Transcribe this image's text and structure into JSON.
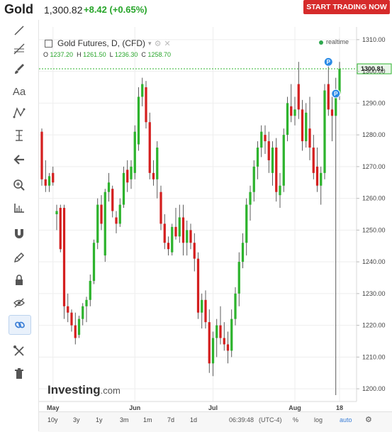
{
  "header": {
    "symbol": "Gold",
    "last": "1,300.82",
    "change": "+8.42 (+0.65%)",
    "cta": "START TRADING NOW"
  },
  "sidebar_tools": [
    "line-tool-icon",
    "fib-tool-icon",
    "brush-icon",
    "text-icon",
    "pattern-icon",
    "measure-icon",
    "back-arrow-icon",
    "zoom-icon",
    "ruler-icon",
    "magnet-icon",
    "pencil-icon",
    "lock-icon",
    "eye-hidden-icon",
    "link-icon",
    "tools-icon",
    "trash-icon"
  ],
  "legend": {
    "title": "Gold Futures, D, (CFD)",
    "ohlc": {
      "o_label": "O",
      "o": "1237.20",
      "h_label": "H",
      "h": "1261.50",
      "l_label": "L",
      "l": "1236.30",
      "c_label": "C",
      "c": "1258.70"
    },
    "realtime": "realtime"
  },
  "brand": {
    "name": "Investing",
    "suffix": ".com"
  },
  "bottom": {
    "ranges": [
      "10y",
      "3y",
      "1y",
      "3m",
      "1m",
      "7d",
      "1d"
    ],
    "time": "06:39:48",
    "tz": "(UTC-4)",
    "pct": "%",
    "log": "log",
    "auto": "auto"
  },
  "chart_data": {
    "type": "candlestick",
    "y_ticks": [
      1200,
      1210,
      1220,
      1230,
      1240,
      1250,
      1260,
      1270,
      1280,
      1290,
      1300,
      1310
    ],
    "ylim": [
      1196,
      1314
    ],
    "x_ticks": [
      {
        "label": "May",
        "index": 3
      },
      {
        "label": "Jun",
        "index": 25
      },
      {
        "label": "Jul",
        "index": 46
      },
      {
        "label": "Aug",
        "index": 68
      },
      {
        "label": "18",
        "index": 80
      }
    ],
    "current_price": "1300.81",
    "current_value": 1300.81,
    "colors": {
      "up": "#2db32d",
      "down": "#d41f1f"
    },
    "markers": [
      {
        "label": "P",
        "index": 77,
        "value": 1303
      },
      {
        "label": "P",
        "index": 79,
        "value": 1293
      }
    ],
    "candles": [
      {
        "o": 1281,
        "h": 1282,
        "l": 1264,
        "c": 1266
      },
      {
        "o": 1266,
        "h": 1272,
        "l": 1262,
        "c": 1264
      },
      {
        "o": 1264,
        "h": 1268,
        "l": 1262,
        "c": 1267
      },
      {
        "o": 1268,
        "h": 1270,
        "l": 1264,
        "c": 1265
      },
      {
        "o": 1255,
        "h": 1258,
        "l": 1250,
        "c": 1256
      },
      {
        "o": 1257,
        "h": 1258,
        "l": 1243,
        "c": 1244
      },
      {
        "o": 1257,
        "h": 1258,
        "l": 1222,
        "c": 1226
      },
      {
        "o": 1226,
        "h": 1230,
        "l": 1221,
        "c": 1224
      },
      {
        "o": 1224,
        "h": 1225,
        "l": 1218,
        "c": 1220
      },
      {
        "o": 1220,
        "h": 1224,
        "l": 1214,
        "c": 1216
      },
      {
        "o": 1217,
        "h": 1223,
        "l": 1216,
        "c": 1222
      },
      {
        "o": 1222,
        "h": 1227,
        "l": 1220,
        "c": 1226
      },
      {
        "o": 1226,
        "h": 1229,
        "l": 1221,
        "c": 1228
      },
      {
        "o": 1228,
        "h": 1236,
        "l": 1226,
        "c": 1234
      },
      {
        "o": 1234,
        "h": 1247,
        "l": 1233,
        "c": 1246
      },
      {
        "o": 1246,
        "h": 1260,
        "l": 1244,
        "c": 1258
      },
      {
        "o": 1258,
        "h": 1261,
        "l": 1250,
        "c": 1252
      },
      {
        "o": 1242,
        "h": 1263,
        "l": 1240,
        "c": 1262
      },
      {
        "o": 1262,
        "h": 1268,
        "l": 1259,
        "c": 1265
      },
      {
        "o": 1263,
        "h": 1264,
        "l": 1254,
        "c": 1256
      },
      {
        "o": 1254,
        "h": 1256,
        "l": 1249,
        "c": 1252
      },
      {
        "o": 1252,
        "h": 1260,
        "l": 1251,
        "c": 1258
      },
      {
        "o": 1258,
        "h": 1270,
        "l": 1257,
        "c": 1268
      },
      {
        "o": 1269,
        "h": 1272,
        "l": 1262,
        "c": 1265
      },
      {
        "o": 1266,
        "h": 1272,
        "l": 1263,
        "c": 1270
      },
      {
        "o": 1268,
        "h": 1283,
        "l": 1266,
        "c": 1281
      },
      {
        "o": 1277,
        "h": 1295,
        "l": 1275,
        "c": 1292
      },
      {
        "o": 1292,
        "h": 1298,
        "l": 1289,
        "c": 1296
      },
      {
        "o": 1295,
        "h": 1297,
        "l": 1282,
        "c": 1284
      },
      {
        "o": 1284,
        "h": 1287,
        "l": 1266,
        "c": 1268
      },
      {
        "o": 1268,
        "h": 1272,
        "l": 1264,
        "c": 1266
      },
      {
        "o": 1266,
        "h": 1278,
        "l": 1260,
        "c": 1276
      },
      {
        "o": 1262,
        "h": 1264,
        "l": 1250,
        "c": 1252
      },
      {
        "o": 1252,
        "h": 1255,
        "l": 1244,
        "c": 1246
      },
      {
        "o": 1246,
        "h": 1248,
        "l": 1242,
        "c": 1244
      },
      {
        "o": 1243,
        "h": 1252,
        "l": 1242,
        "c": 1251
      },
      {
        "o": 1251,
        "h": 1257,
        "l": 1247,
        "c": 1248
      },
      {
        "o": 1248,
        "h": 1258,
        "l": 1246,
        "c": 1254
      },
      {
        "o": 1254,
        "h": 1258,
        "l": 1242,
        "c": 1246
      },
      {
        "o": 1246,
        "h": 1253,
        "l": 1242,
        "c": 1250
      },
      {
        "o": 1250,
        "h": 1252,
        "l": 1244,
        "c": 1246
      },
      {
        "o": 1246,
        "h": 1249,
        "l": 1237,
        "c": 1241
      },
      {
        "o": 1241,
        "h": 1243,
        "l": 1222,
        "c": 1224
      },
      {
        "o": 1224,
        "h": 1230,
        "l": 1219,
        "c": 1228
      },
      {
        "o": 1228,
        "h": 1231,
        "l": 1219,
        "c": 1221
      },
      {
        "o": 1221,
        "h": 1225,
        "l": 1205,
        "c": 1208
      },
      {
        "o": 1208,
        "h": 1218,
        "l": 1204,
        "c": 1216
      },
      {
        "o": 1216,
        "h": 1222,
        "l": 1210,
        "c": 1220
      },
      {
        "o": 1220,
        "h": 1226,
        "l": 1214,
        "c": 1216
      },
      {
        "o": 1216,
        "h": 1221,
        "l": 1212,
        "c": 1214
      },
      {
        "o": 1214,
        "h": 1218,
        "l": 1208,
        "c": 1212
      },
      {
        "o": 1212,
        "h": 1225,
        "l": 1210,
        "c": 1222
      },
      {
        "o": 1222,
        "h": 1232,
        "l": 1220,
        "c": 1230
      },
      {
        "o": 1230,
        "h": 1243,
        "l": 1226,
        "c": 1240
      },
      {
        "o": 1240,
        "h": 1249,
        "l": 1238,
        "c": 1246
      },
      {
        "o": 1246,
        "h": 1260,
        "l": 1242,
        "c": 1258
      },
      {
        "o": 1258,
        "h": 1264,
        "l": 1253,
        "c": 1262
      },
      {
        "o": 1262,
        "h": 1272,
        "l": 1259,
        "c": 1270
      },
      {
        "o": 1270,
        "h": 1278,
        "l": 1266,
        "c": 1276
      },
      {
        "o": 1276,
        "h": 1283,
        "l": 1273,
        "c": 1281
      },
      {
        "o": 1280,
        "h": 1283,
        "l": 1274,
        "c": 1278
      },
      {
        "o": 1278,
        "h": 1281,
        "l": 1268,
        "c": 1272
      },
      {
        "o": 1268,
        "h": 1278,
        "l": 1264,
        "c": 1276
      },
      {
        "o": 1276,
        "h": 1279,
        "l": 1259,
        "c": 1262
      },
      {
        "o": 1261,
        "h": 1268,
        "l": 1257,
        "c": 1264
      },
      {
        "o": 1264,
        "h": 1282,
        "l": 1262,
        "c": 1280
      },
      {
        "o": 1280,
        "h": 1292,
        "l": 1278,
        "c": 1290
      },
      {
        "o": 1289,
        "h": 1296,
        "l": 1284,
        "c": 1286
      },
      {
        "o": 1286,
        "h": 1292,
        "l": 1283,
        "c": 1288
      },
      {
        "o": 1296,
        "h": 1303,
        "l": 1285,
        "c": 1288
      },
      {
        "o": 1288,
        "h": 1291,
        "l": 1275,
        "c": 1278
      },
      {
        "o": 1278,
        "h": 1290,
        "l": 1276,
        "c": 1287
      },
      {
        "o": 1282,
        "h": 1292,
        "l": 1272,
        "c": 1276
      },
      {
        "o": 1276,
        "h": 1280,
        "l": 1266,
        "c": 1268
      },
      {
        "o": 1270,
        "h": 1276,
        "l": 1262,
        "c": 1264
      },
      {
        "o": 1264,
        "h": 1270,
        "l": 1258,
        "c": 1268
      },
      {
        "o": 1268,
        "h": 1296,
        "l": 1266,
        "c": 1294
      },
      {
        "o": 1296,
        "h": 1302,
        "l": 1286,
        "c": 1288
      },
      {
        "o": 1288,
        "h": 1292,
        "l": 1278,
        "c": 1286
      },
      {
        "o": 1286,
        "h": 1298,
        "l": 1198,
        "c": 1293
      },
      {
        "o": 1293,
        "h": 1303,
        "l": 1291,
        "c": 1300.8
      }
    ]
  }
}
